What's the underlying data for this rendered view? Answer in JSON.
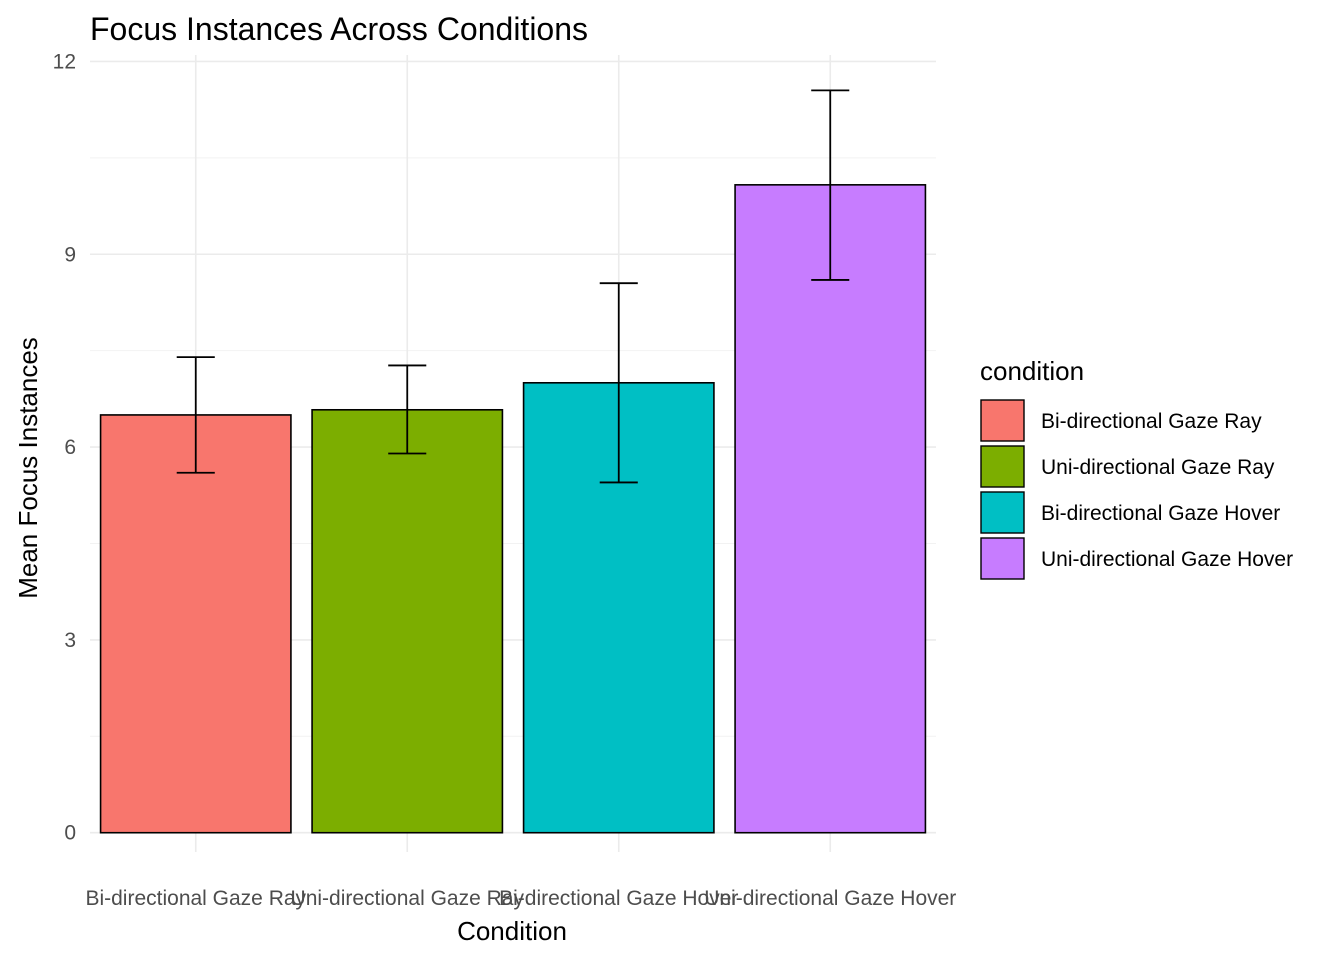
{
  "chart_data": {
    "type": "bar",
    "title": "Focus Instances Across Conditions",
    "xlabel": "Condition",
    "ylabel": "Mean Focus Instances",
    "ylim": [
      -0.3,
      12.1
    ],
    "yticks": [
      0,
      3,
      6,
      9,
      12
    ],
    "grid": true,
    "legend_title": "condition",
    "legend_position": "right",
    "categories": [
      "Bi-directional Gaze Ray",
      "Uni-directional Gaze Ray",
      "Bi-directional Gaze Hover",
      "Uni-directional Gaze Hover"
    ],
    "values": [
      6.5,
      6.58,
      7.0,
      10.08
    ],
    "error_low": [
      5.6,
      5.9,
      5.45,
      8.6
    ],
    "error_high": [
      7.4,
      7.27,
      8.55,
      11.55
    ],
    "colors": [
      "#F8766D",
      "#7CAE00",
      "#00BFC4",
      "#C77CFF"
    ]
  }
}
